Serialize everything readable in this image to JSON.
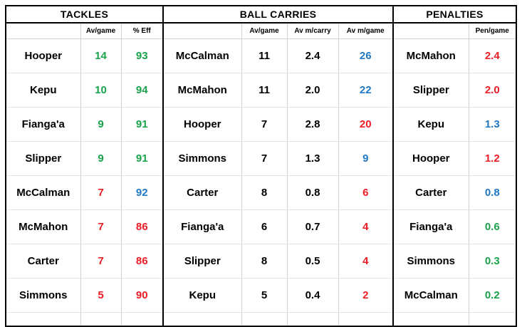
{
  "colors": {
    "green": "#1aa34a",
    "red": "#ee1c24",
    "blue": "#1f78c1",
    "black": "#000000"
  },
  "sections": {
    "tackles": "TACKLES",
    "carries": "BALL CARRIES",
    "penalties": "PENALTIES"
  },
  "headers": {
    "tackles": [
      "Av/game",
      "% Eff"
    ],
    "carries": [
      "Av/game",
      "Av m/carry",
      "Av m/game"
    ],
    "penalties": [
      "Pen/game"
    ]
  },
  "tackles": [
    {
      "name": "Hooper",
      "av": {
        "v": "14",
        "c": "green"
      },
      "eff": {
        "v": "93",
        "c": "green"
      }
    },
    {
      "name": "Kepu",
      "av": {
        "v": "10",
        "c": "green"
      },
      "eff": {
        "v": "94",
        "c": "green"
      }
    },
    {
      "name": "Fianga'a",
      "av": {
        "v": "9",
        "c": "green"
      },
      "eff": {
        "v": "91",
        "c": "green"
      }
    },
    {
      "name": "Slipper",
      "av": {
        "v": "9",
        "c": "green"
      },
      "eff": {
        "v": "91",
        "c": "green"
      }
    },
    {
      "name": "McCalman",
      "av": {
        "v": "7",
        "c": "red"
      },
      "eff": {
        "v": "92",
        "c": "blue"
      }
    },
    {
      "name": "McMahon",
      "av": {
        "v": "7",
        "c": "red"
      },
      "eff": {
        "v": "86",
        "c": "red"
      }
    },
    {
      "name": "Carter",
      "av": {
        "v": "7",
        "c": "red"
      },
      "eff": {
        "v": "86",
        "c": "red"
      }
    },
    {
      "name": "Simmons",
      "av": {
        "v": "5",
        "c": "red"
      },
      "eff": {
        "v": "90",
        "c": "red"
      }
    }
  ],
  "carries": [
    {
      "name": "McCalman",
      "av": "11",
      "mcarry": "2.4",
      "mgame": {
        "v": "26",
        "c": "blue"
      }
    },
    {
      "name": "McMahon",
      "av": "11",
      "mcarry": "2.0",
      "mgame": {
        "v": "22",
        "c": "blue"
      }
    },
    {
      "name": "Hooper",
      "av": "7",
      "mcarry": "2.8",
      "mgame": {
        "v": "20",
        "c": "red"
      }
    },
    {
      "name": "Simmons",
      "av": "7",
      "mcarry": "1.3",
      "mgame": {
        "v": "9",
        "c": "blue"
      }
    },
    {
      "name": "Carter",
      "av": "8",
      "mcarry": "0.8",
      "mgame": {
        "v": "6",
        "c": "red"
      }
    },
    {
      "name": "Fianga'a",
      "av": "6",
      "mcarry": "0.7",
      "mgame": {
        "v": "4",
        "c": "red"
      }
    },
    {
      "name": "Slipper",
      "av": "8",
      "mcarry": "0.5",
      "mgame": {
        "v": "4",
        "c": "red"
      }
    },
    {
      "name": "Kepu",
      "av": "5",
      "mcarry": "0.4",
      "mgame": {
        "v": "2",
        "c": "red"
      }
    }
  ],
  "penalties": [
    {
      "name": "McMahon",
      "pen": {
        "v": "2.4",
        "c": "red"
      }
    },
    {
      "name": "Slipper",
      "pen": {
        "v": "2.0",
        "c": "red"
      }
    },
    {
      "name": "Kepu",
      "pen": {
        "v": "1.3",
        "c": "blue"
      }
    },
    {
      "name": "Hooper",
      "pen": {
        "v": "1.2",
        "c": "red"
      }
    },
    {
      "name": "Carter",
      "pen": {
        "v": "0.8",
        "c": "blue"
      }
    },
    {
      "name": "Fianga'a",
      "pen": {
        "v": "0.6",
        "c": "green"
      }
    },
    {
      "name": "Simmons",
      "pen": {
        "v": "0.3",
        "c": "green"
      }
    },
    {
      "name": "McCalman",
      "pen": {
        "v": "0.2",
        "c": "green"
      }
    }
  ]
}
